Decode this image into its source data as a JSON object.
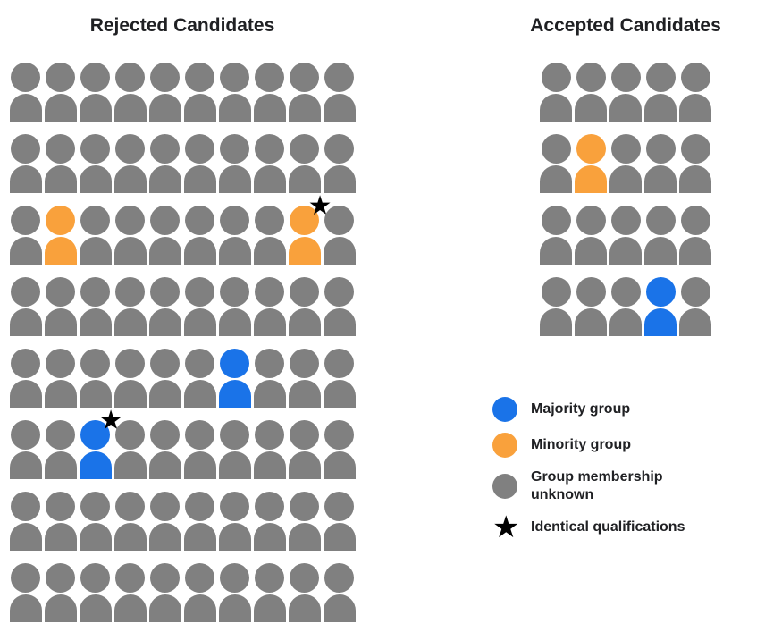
{
  "colors": {
    "majority": "#1a73e8",
    "minority": "#f9a13c",
    "unknown": "#808080",
    "star": "#000000",
    "text": "#202124"
  },
  "glyphs": {
    "star": "★"
  },
  "rejected": {
    "title": "Rejected Candidates",
    "rows": 8,
    "cols": 10,
    "special": [
      {
        "row": 3,
        "col": 2,
        "group": "minority",
        "star": false
      },
      {
        "row": 3,
        "col": 9,
        "group": "minority",
        "star": true
      },
      {
        "row": 5,
        "col": 7,
        "group": "majority",
        "star": false
      },
      {
        "row": 6,
        "col": 3,
        "group": "majority",
        "star": true
      }
    ]
  },
  "accepted": {
    "title": "Accepted Candidates",
    "rows": 4,
    "cols": 5,
    "special": [
      {
        "row": 2,
        "col": 2,
        "group": "minority",
        "star": false
      },
      {
        "row": 4,
        "col": 4,
        "group": "majority",
        "star": false
      }
    ]
  },
  "legend": {
    "items": [
      {
        "type": "circle",
        "group": "majority",
        "label": "Majority group"
      },
      {
        "type": "circle",
        "group": "minority",
        "label": "Minority group"
      },
      {
        "type": "circle",
        "group": "unknown",
        "label": "Group membership unknown"
      },
      {
        "type": "star",
        "group": "star",
        "label": "Identical qualifications"
      }
    ]
  }
}
